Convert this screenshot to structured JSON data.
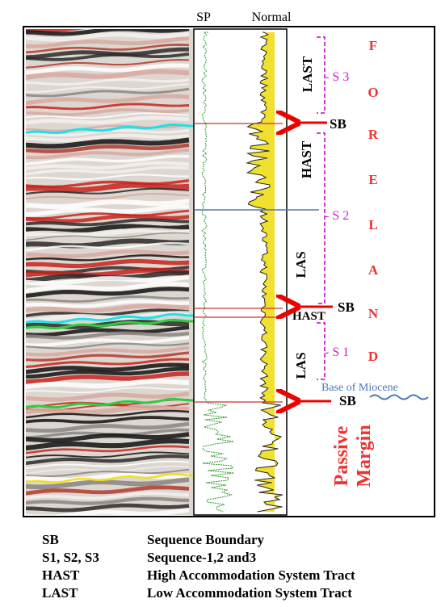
{
  "header": {
    "sp": "SP",
    "normal": "Normal"
  },
  "annotations": {
    "last_upper": "LAST",
    "hast_upper": "HAST",
    "las_middle": "LAS",
    "hast_lower": "HAST",
    "las_lower": "LAS",
    "sb_1": "SB",
    "sb_2": "SB",
    "sb_3": "SB",
    "s3": "- S 3",
    "s2": "- S 2",
    "s1": "- S 1",
    "base_miocene": "Base of Miocene",
    "passive": "Passive",
    "margin": "Margin"
  },
  "foreland": [
    "F",
    "O",
    "R",
    "E",
    "L",
    "A",
    "N",
    "D"
  ],
  "legend": [
    {
      "abbr": "SB",
      "meaning": "Sequence Boundary"
    },
    {
      "abbr": "S1, S2, S3",
      "meaning": "Sequence-1,2 and3"
    },
    {
      "abbr": "HAST",
      "meaning": "High Accommodation System Tract"
    },
    {
      "abbr": "LAST",
      "meaning": "Low Accommodation System Tract"
    }
  ]
}
